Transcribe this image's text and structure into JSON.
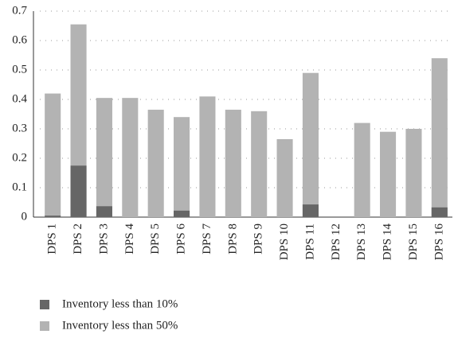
{
  "chart_data": {
    "type": "bar",
    "categories": [
      "DPS 1",
      "DPS 2",
      "DPS 3",
      "DPS 4",
      "DPS 5",
      "DPS 6",
      "DPS 7",
      "DPS 8",
      "DPS 9",
      "DPS 10",
      "DPS 11",
      "DPS 12",
      "DPS 13",
      "DPS 14",
      "DPS 15",
      "DPS 16"
    ],
    "series": [
      {
        "name": "Inventory less than 10%",
        "color": "#666666",
        "values": [
          0.005,
          0.175,
          0.037,
          0,
          0,
          0.022,
          0,
          0,
          0,
          0,
          0.043,
          0,
          0,
          0,
          0,
          0.033
        ]
      },
      {
        "name": "Inventory less than 50%",
        "color": "#b3b3b3",
        "values": [
          0.42,
          0.655,
          0.405,
          0.405,
          0.365,
          0.34,
          0.41,
          0.365,
          0.36,
          0.265,
          0.49,
          0,
          0.32,
          0.29,
          0.3,
          0.54
        ]
      }
    ],
    "ylim": [
      0,
      0.7
    ],
    "yticks": [
      0,
      0.1,
      0.2,
      0.3,
      0.4,
      0.5,
      0.6,
      0.7
    ],
    "grid": true
  }
}
